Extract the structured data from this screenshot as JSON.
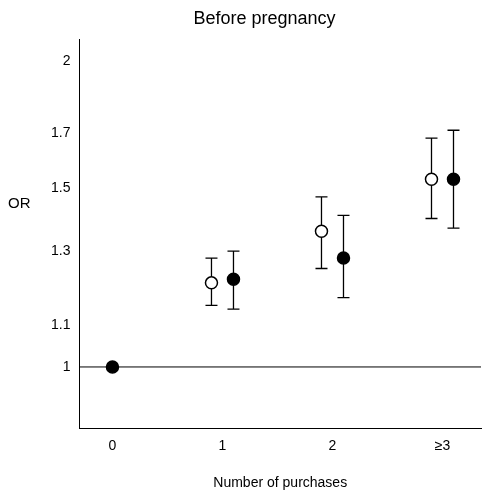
{
  "chart_data": {
    "type": "scatter",
    "title": "Before pregnancy",
    "x_label": "Number of purchases",
    "y_label": "OR",
    "categories": [
      "0",
      "1",
      "2",
      "≥3"
    ],
    "log": "y",
    "ylim": [
      0.87,
      2.1
    ],
    "yticks": [
      1,
      1.1,
      1.3,
      1.5,
      1.7,
      2
    ],
    "grid": false,
    "reference_line": 1,
    "series": [
      {
        "marker": "open_circle",
        "color": "#000000",
        "values": [
          null,
          1.21,
          1.36,
          1.53
        ],
        "error_low": [
          null,
          1.15,
          1.25,
          1.4
        ],
        "error_high": [
          null,
          1.28,
          1.47,
          1.68
        ]
      },
      {
        "marker": "circle",
        "color": "#000000",
        "values": [
          1,
          1.22,
          1.28,
          1.53
        ],
        "error_low": [
          null,
          1.14,
          1.17,
          1.37
        ],
        "error_high": [
          null,
          1.3,
          1.41,
          1.71
        ]
      }
    ]
  }
}
